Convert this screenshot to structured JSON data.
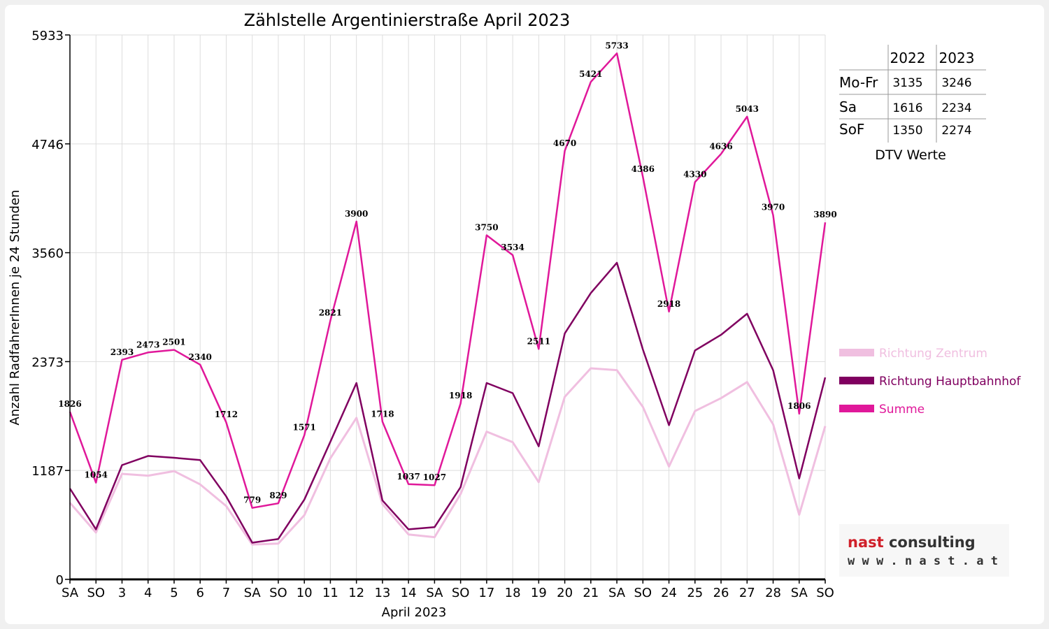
{
  "chart_data": {
    "type": "line",
    "title": "Zählstelle Argentinierstraße April 2023",
    "xlabel": "April 2023",
    "ylabel": "Anzahl RadfahrerInnen je 24 Stunden",
    "ylim": [
      0,
      5933
    ],
    "yticks": [
      "0",
      "1187",
      "2373",
      "3560",
      "4746",
      "5933"
    ],
    "ytick_values": [
      0,
      1187,
      2373,
      3560,
      4746,
      5933
    ],
    "grid": true,
    "legend_position": "right",
    "categories": [
      "SA",
      "SO",
      "3",
      "4",
      "5",
      "6",
      "7",
      "SA",
      "SO",
      "10",
      "11",
      "12",
      "13",
      "14",
      "SA",
      "SO",
      "17",
      "18",
      "19",
      "20",
      "21",
      "SA",
      "SO",
      "24",
      "25",
      "26",
      "27",
      "28",
      "SA",
      "SO"
    ],
    "highlight_categories": [
      1,
      8,
      9,
      15,
      22,
      29
    ],
    "highlight_color": "#ff0000",
    "series": [
      {
        "name": "Richtung Zentrum",
        "color": "#f0bfe0",
        "width": 3,
        "values": [
          835,
          510,
          1150,
          1130,
          1180,
          1035,
          800,
          380,
          390,
          700,
          1320,
          1760,
          820,
          490,
          460,
          930,
          1610,
          1495,
          1060,
          1990,
          2300,
          2280,
          1880,
          1230,
          1835,
          1975,
          2150,
          1690,
          705,
          1670
        ]
      },
      {
        "name": "Richtung Hauptbahnhof",
        "color": "#800060",
        "width": 2.5,
        "values": [
          990,
          545,
          1245,
          1345,
          1325,
          1300,
          905,
          400,
          440,
          870,
          1500,
          2140,
          860,
          545,
          570,
          1005,
          2140,
          2030,
          1450,
          2680,
          3120,
          3450,
          2505,
          1680,
          2495,
          2665,
          2895,
          2280,
          1100,
          2200
        ]
      },
      {
        "name": "Summe",
        "color": "#e0189a",
        "width": 2.5,
        "label_values": true,
        "values": [
          1826,
          1054,
          2393,
          2473,
          2501,
          2340,
          1712,
          779,
          829,
          1571,
          2821,
          3900,
          1718,
          1037,
          1027,
          1918,
          3750,
          3534,
          2511,
          4670,
          5421,
          5733,
          4386,
          2918,
          4330,
          4636,
          5043,
          3970,
          1806,
          3890
        ]
      }
    ]
  },
  "dtv_table": {
    "caption": "DTV Werte",
    "headers": [
      "",
      "2022",
      "2023"
    ],
    "rows": [
      [
        "Mo-Fr",
        "3135",
        "3246"
      ],
      [
        "Sa",
        "1616",
        "2234"
      ],
      [
        "SoF",
        "1350",
        "2274"
      ]
    ]
  },
  "logo": {
    "main": "nast consulting",
    "sub": "w w w . n a s t . a t",
    "color_red": "#d0202a",
    "color_dark": "#333333"
  }
}
